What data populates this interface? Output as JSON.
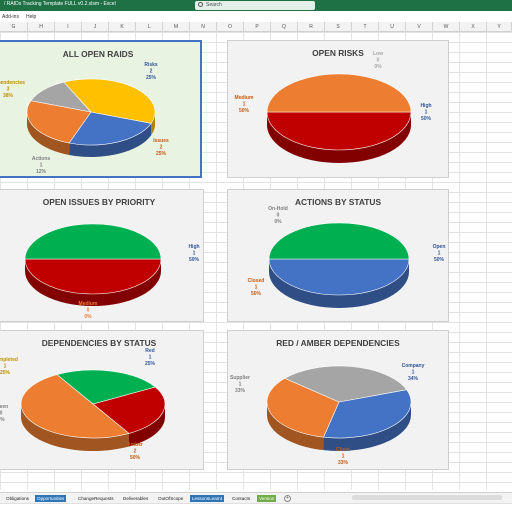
{
  "window": {
    "title": "/ RAIDs Tracking Template FULL v0.2.xlsm  -  Excel",
    "search_placeholder": "Search",
    "brand_color": "#1e7145"
  },
  "menu": {
    "items": [
      "Add-ins",
      "Help"
    ]
  },
  "columns": [
    "G",
    "H",
    "I",
    "J",
    "K",
    "L",
    "M",
    "N",
    "O",
    "P",
    "Q",
    "R",
    "S",
    "T",
    "U",
    "V",
    "W",
    "X",
    "Y"
  ],
  "charts": [
    {
      "id": "all-open-raids",
      "title": "ALL OPEN RAIDS",
      "slices": [
        {
          "label": "Risks",
          "count": "2",
          "pct": "25%",
          "value": 25,
          "color": "#4472c4",
          "text_color": "#2f5597"
        },
        {
          "label": "Issues",
          "count": "2",
          "pct": "25%",
          "value": 25,
          "color": "#ed7d31",
          "text_color": "#c55a11"
        },
        {
          "label": "Actions",
          "count": "1",
          "pct": "12%",
          "value": 12.5,
          "color": "#a5a5a5",
          "text_color": "#7f7f7f"
        },
        {
          "label": "Dependencies",
          "count": "3",
          "pct": "38%",
          "value": 37.5,
          "color": "#ffc000",
          "text_color": "#bf8f00"
        }
      ]
    },
    {
      "id": "open-risks",
      "title": "OPEN RISKS",
      "slices": [
        {
          "label": "High",
          "count": "1",
          "pct": "50%",
          "value": 50,
          "color": "#c00000",
          "text_color": "#2f5597"
        },
        {
          "label": "Medium",
          "count": "1",
          "pct": "50%",
          "value": 50,
          "color": "#ed7d31",
          "text_color": "#c55a11"
        },
        {
          "label": "Low",
          "count": "0",
          "pct": "0%",
          "value": 0,
          "color": "#a5a5a5",
          "text_color": "#a5a5a5"
        }
      ]
    },
    {
      "id": "open-issues-by-priority",
      "title": "OPEN ISSUES BY PRIORITY",
      "slices": [
        {
          "label": "High",
          "count": "1",
          "pct": "50%",
          "value": 50,
          "color": "#c00000",
          "text_color": "#2f5597"
        },
        {
          "label": "Medium",
          "count": "0",
          "pct": "0%",
          "value": 0,
          "color": "#ed7d31",
          "text_color": "#ed7d31"
        },
        {
          "label": "",
          "count": "",
          "pct": "",
          "value": 50,
          "color": "#00b050",
          "text_color": "#00b050"
        }
      ]
    },
    {
      "id": "actions-by-status",
      "title": "ACTIONS BY STATUS",
      "slices": [
        {
          "label": "Open",
          "count": "1",
          "pct": "50%",
          "value": 50,
          "color": "#4472c4",
          "text_color": "#2f5597"
        },
        {
          "label": "Closed",
          "count": "1",
          "pct": "50%",
          "value": 50,
          "color": "#00b050",
          "text_color": "#c55a11"
        },
        {
          "label": "On-Hold",
          "count": "0",
          "pct": "0%",
          "value": 0,
          "color": "#a5a5a5",
          "text_color": "#7f7f7f"
        }
      ]
    },
    {
      "id": "dependencies-by-status",
      "title": "DEPENDENCIES BY STATUS",
      "slices": [
        {
          "label": "Red",
          "count": "1",
          "pct": "25%",
          "value": 25,
          "color": "#c00000",
          "text_color": "#2f5597"
        },
        {
          "label": "Amber",
          "count": "2",
          "pct": "50%",
          "value": 50,
          "color": "#ed7d31",
          "text_color": "#c55a11"
        },
        {
          "label": "Green",
          "count": "0",
          "pct": "0%",
          "value": 0,
          "color": "#00b050",
          "text_color": "#7f7f7f"
        },
        {
          "label": "Completed",
          "count": "1",
          "pct": "25%",
          "value": 25,
          "color": "#00b050",
          "text_color": "#bf8f00"
        }
      ]
    },
    {
      "id": "red-amber-dependencies",
      "title": "RED / AMBER DEPENDENCIES",
      "slices": [
        {
          "label": "Company",
          "count": "1",
          "pct": "34%",
          "value": 34,
          "color": "#4472c4",
          "text_color": "#2f5597"
        },
        {
          "label": "Client",
          "count": "1",
          "pct": "33%",
          "value": 33,
          "color": "#ed7d31",
          "text_color": "#c55a11"
        },
        {
          "label": "Supplier",
          "count": "1",
          "pct": "33%",
          "value": 33,
          "color": "#a5a5a5",
          "text_color": "#7f7f7f"
        }
      ]
    }
  ],
  "sheet_tabs": [
    {
      "label": "Obligations",
      "style": "plain"
    },
    {
      "label": "Opportunities",
      "style": "blue"
    },
    {
      "label": "ChangeRequests",
      "style": "plain"
    },
    {
      "label": "Deliverables",
      "style": "plain"
    },
    {
      "label": "OutOfScope",
      "style": "plain"
    },
    {
      "label": "LessonsLearnt",
      "style": "blue"
    },
    {
      "label": "Contacts",
      "style": "plain"
    },
    {
      "label": "Version",
      "style": "green"
    }
  ],
  "add_sheet_label": "+"
}
